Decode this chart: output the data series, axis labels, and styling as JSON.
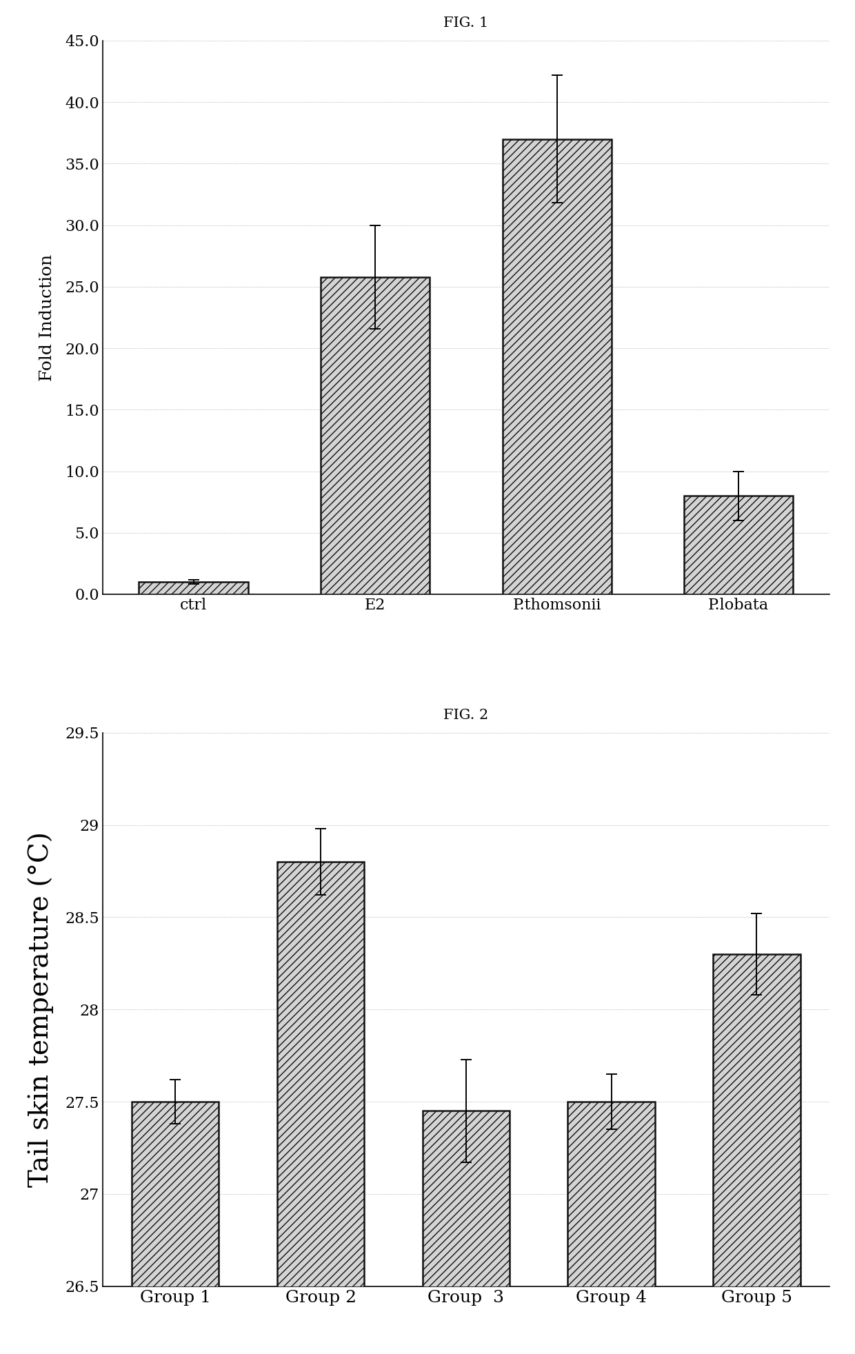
{
  "fig1": {
    "title": "FIG. 1",
    "categories": [
      "ctrl",
      "E2",
      "P.thomsonii",
      "P.lobata"
    ],
    "values": [
      1.0,
      25.8,
      37.0,
      8.0
    ],
    "errors": [
      0.15,
      4.2,
      5.2,
      2.0
    ],
    "ylabel": "Fold Induction",
    "ylim": [
      0.0,
      45.0
    ],
    "yticks": [
      0.0,
      5.0,
      10.0,
      15.0,
      20.0,
      25.0,
      30.0,
      35.0,
      40.0,
      45.0
    ],
    "ytick_labels": [
      "0.0",
      "5.0",
      "10.0",
      "15.0",
      "20.0",
      "25.0",
      "30.0",
      "35.0",
      "40.0",
      "45.0"
    ]
  },
  "fig2": {
    "title": "FIG. 2",
    "categories": [
      "Group 1",
      "Group 2",
      "Group  3",
      "Group 4",
      "Group 5"
    ],
    "values": [
      27.5,
      28.8,
      27.45,
      27.5,
      28.3
    ],
    "errors": [
      0.12,
      0.18,
      0.28,
      0.15,
      0.22
    ],
    "ylabel": "Tail skin temperature (°C)",
    "ylim": [
      26.5,
      29.5
    ],
    "yticks": [
      26.5,
      27.0,
      27.5,
      28.0,
      28.5,
      29.0,
      29.5
    ],
    "ytick_labels": [
      "26.5",
      "27",
      "27.5",
      "28",
      "28.5",
      "29",
      "29.5"
    ]
  },
  "hatch": "///",
  "bar_color": "#d4d4d4",
  "bar_edgecolor": "#111111",
  "background_color": "#ffffff",
  "grid_color": "#aaaaaa",
  "title_fontsize": 15,
  "label_fontsize": 16,
  "tick_fontsize": 14,
  "bar_linewidth": 1.8,
  "ylabel2_fontsize": 28
}
